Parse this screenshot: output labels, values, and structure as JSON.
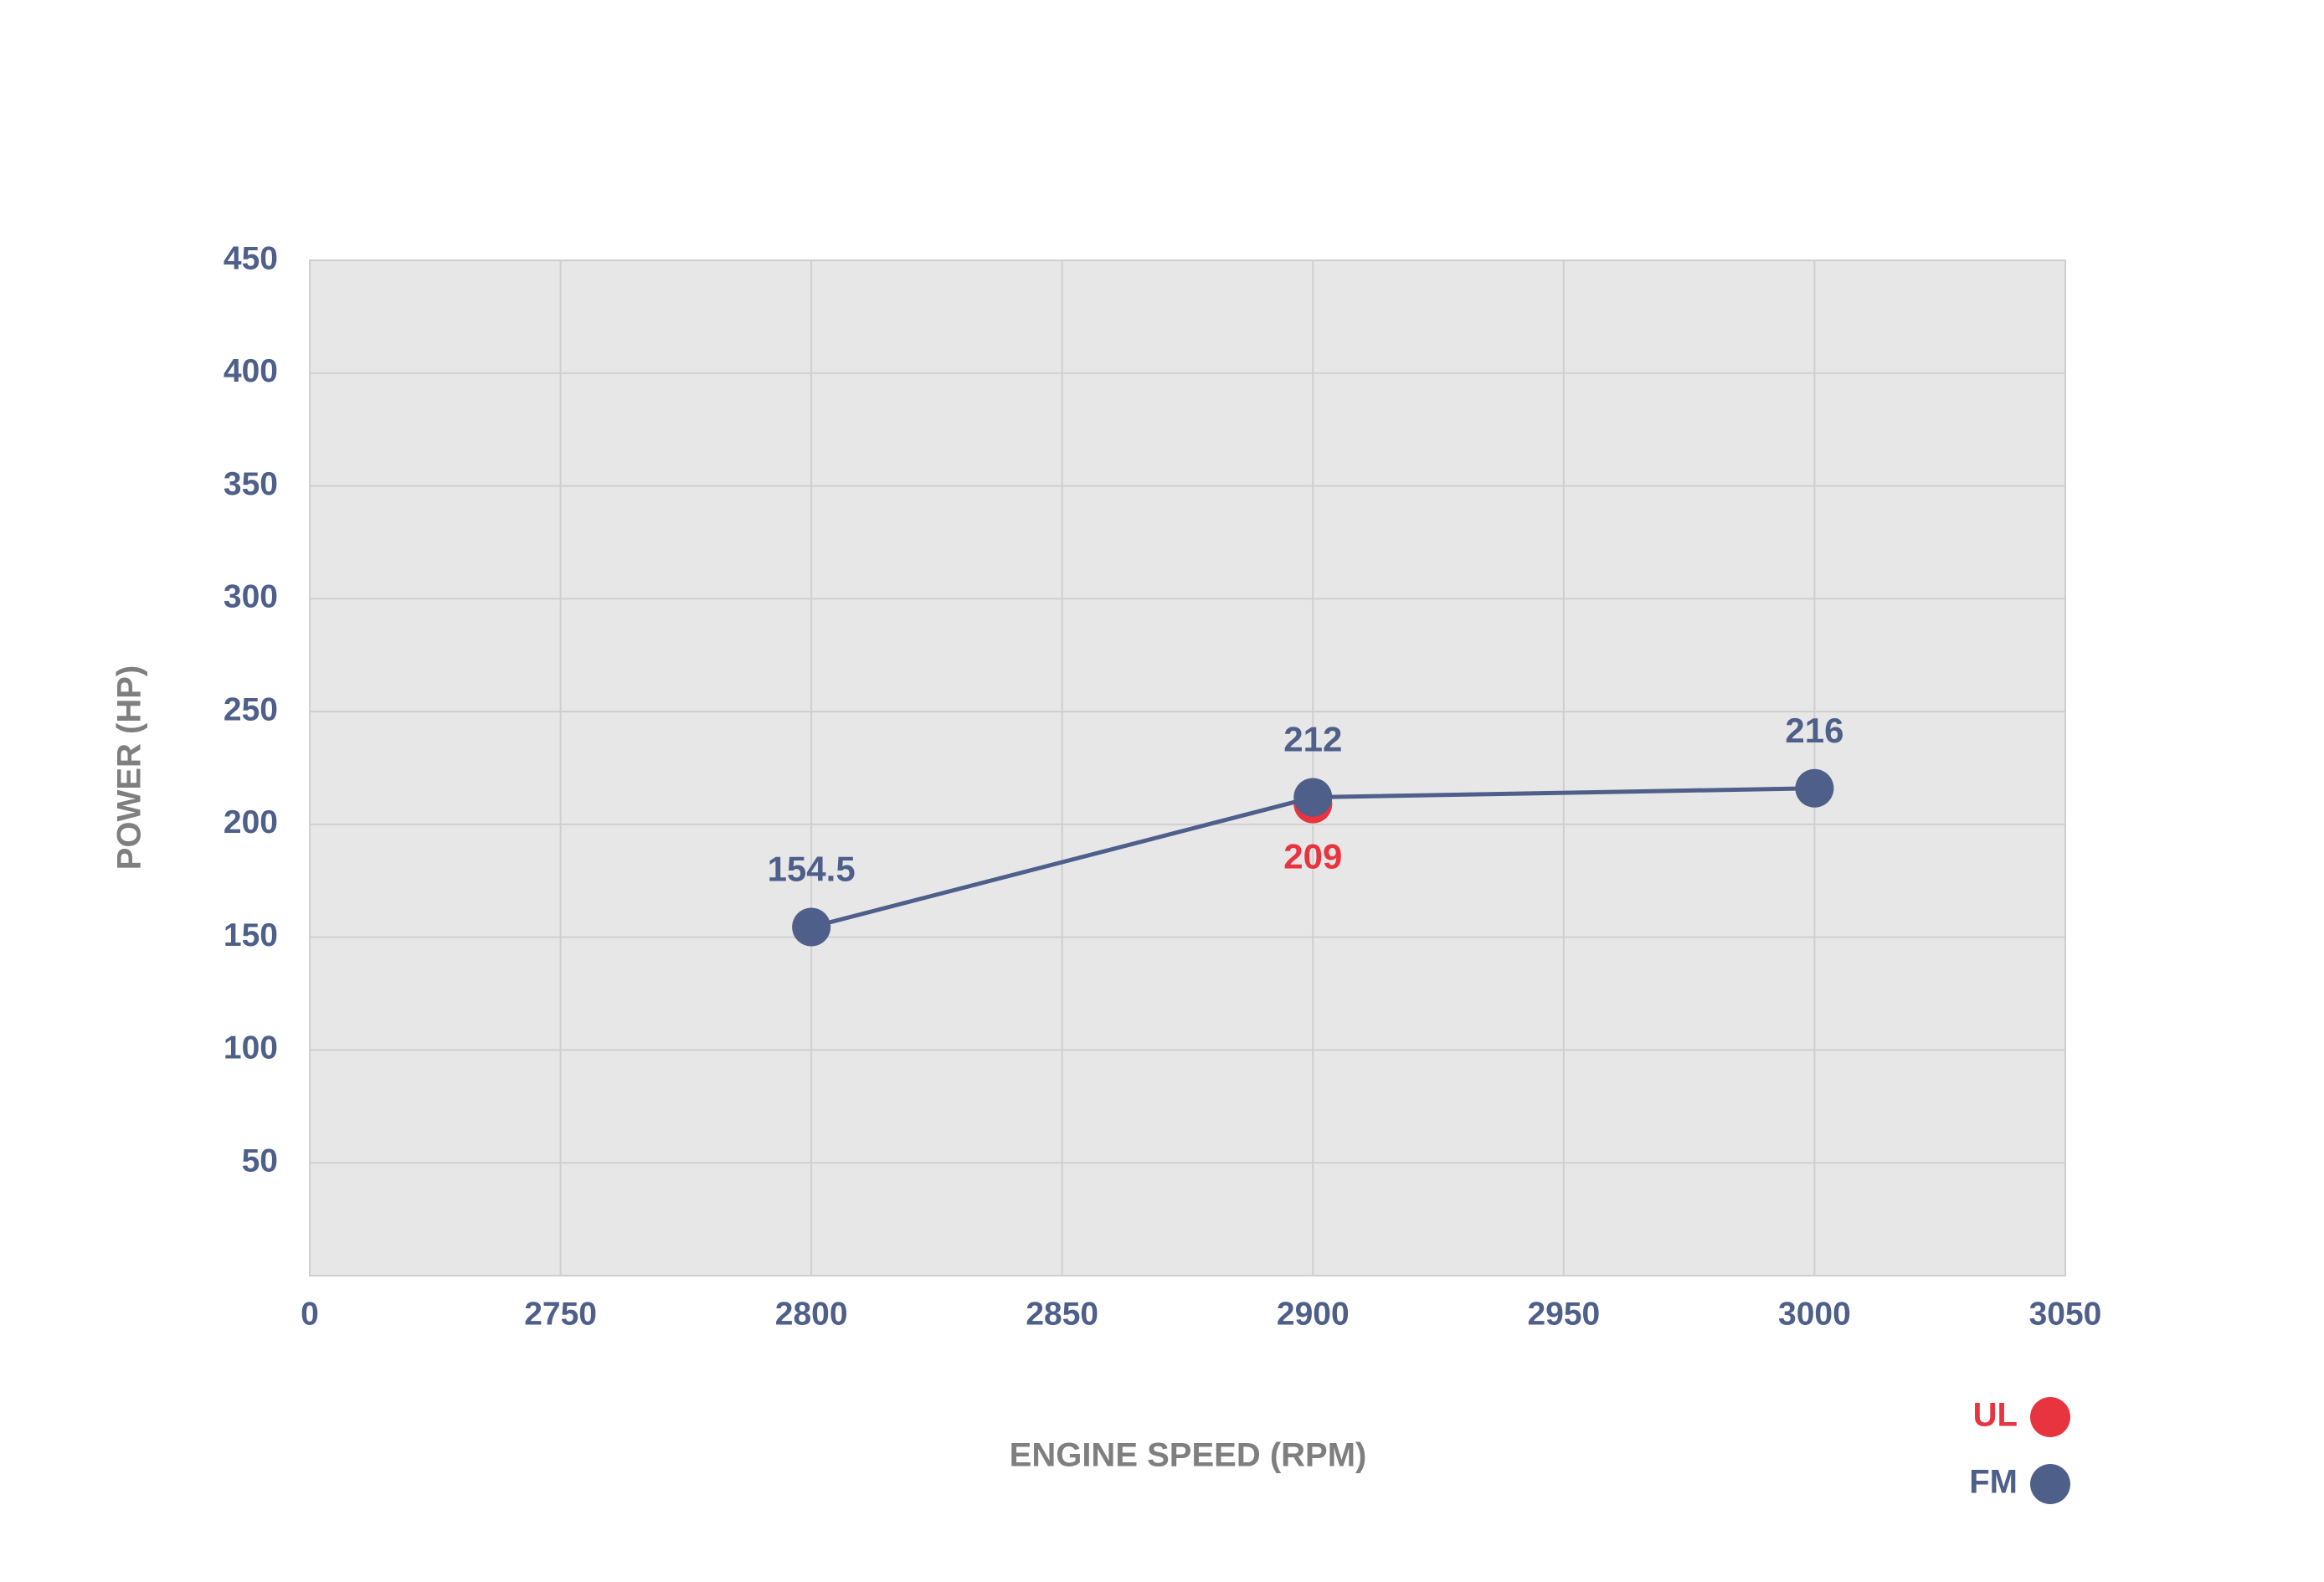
{
  "chart_data": {
    "type": "line",
    "x_label": "ENGINE SPEED (RPM)",
    "y_label": "POWER (HP)",
    "xlim": [
      2700,
      3050
    ],
    "xticks": [
      {
        "value": 2700,
        "label": "0"
      },
      2750,
      2800,
      2850,
      2900,
      2950,
      3000,
      3050
    ],
    "ylim": [
      0,
      450
    ],
    "yticks": [
      50,
      100,
      150,
      200,
      250,
      300,
      350,
      400,
      450
    ],
    "grid": true,
    "legend": "bottom-right",
    "series": [
      {
        "name": "UL",
        "color": "#e8343f",
        "line": false,
        "label_position": "below",
        "x": [
          2900
        ],
        "values": [
          209
        ]
      },
      {
        "name": "FM",
        "color": "#4e5f8a",
        "line": true,
        "label_position": "above",
        "x": [
          2800,
          2900,
          3000
        ],
        "values": [
          154.5,
          212,
          216
        ]
      }
    ]
  }
}
